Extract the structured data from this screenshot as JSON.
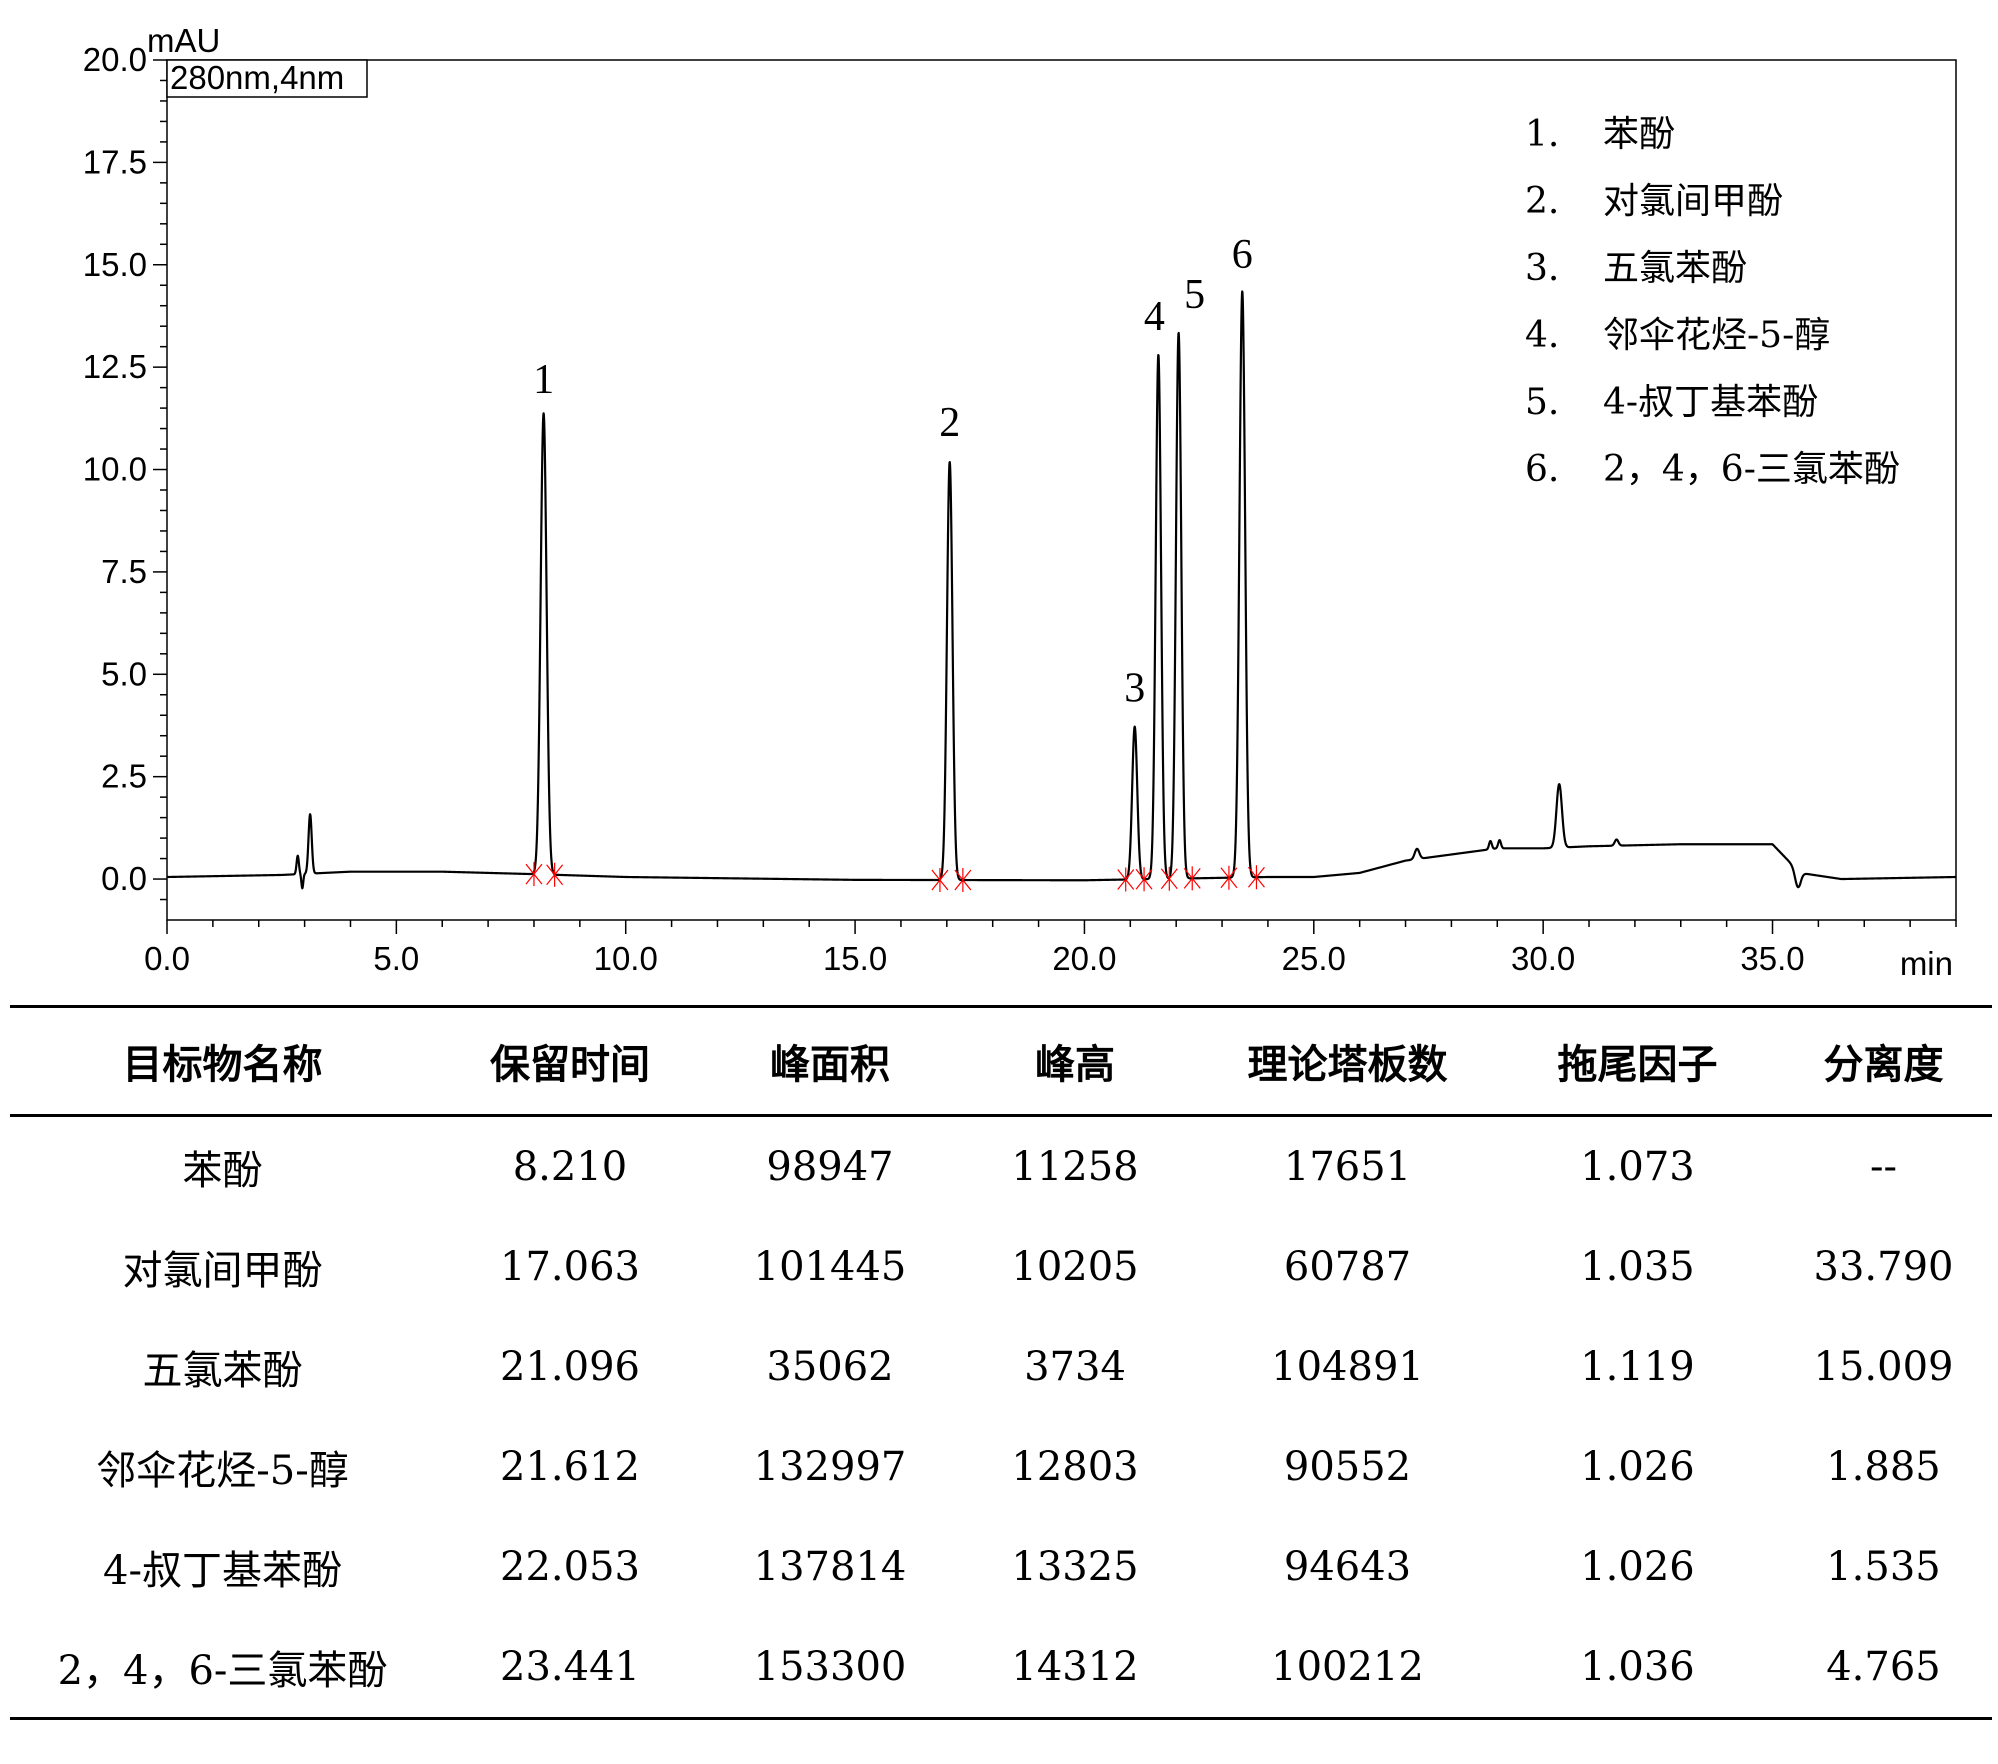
{
  "chart_data": {
    "type": "line",
    "title": "",
    "ylabel": "mAU",
    "xlabel": "min",
    "wavelength_box": "280nm,4nm",
    "xlim": [
      0,
      39
    ],
    "ylim": [
      -1,
      20
    ],
    "x_ticks": [
      "0.0",
      "5.0",
      "10.0",
      "15.0",
      "20.0",
      "25.0",
      "30.0",
      "35.0"
    ],
    "x_tick_values": [
      0,
      5,
      10,
      15,
      20,
      25,
      30,
      35
    ],
    "y_ticks": [
      "0.0",
      "2.5",
      "5.0",
      "7.5",
      "10.0",
      "12.5",
      "15.0",
      "17.5",
      "20.0"
    ],
    "y_tick_values": [
      0,
      2.5,
      5,
      7.5,
      10,
      12.5,
      15,
      17.5,
      20
    ],
    "grid": false,
    "peaks": [
      {
        "label": "1",
        "rt": 8.21,
        "height": 11.26,
        "sigma": 0.065
      },
      {
        "label": "2",
        "rt": 17.063,
        "height": 10.21,
        "sigma": 0.06
      },
      {
        "label": "3",
        "rt": 21.096,
        "height": 3.73,
        "sigma": 0.055
      },
      {
        "label": "4",
        "rt": 21.612,
        "height": 12.8,
        "sigma": 0.058
      },
      {
        "label": "5",
        "rt": 22.053,
        "height": 13.33,
        "sigma": 0.058
      },
      {
        "label": "6",
        "rt": 23.441,
        "height": 14.31,
        "sigma": 0.062
      }
    ],
    "minor_peaks": [
      {
        "rt": 2.85,
        "height": 0.45,
        "sigma": 0.025
      },
      {
        "rt": 3.12,
        "height": 1.45,
        "sigma": 0.035
      },
      {
        "rt": 27.25,
        "height": 0.25,
        "sigma": 0.05
      },
      {
        "rt": 28.85,
        "height": 0.2,
        "sigma": 0.03
      },
      {
        "rt": 29.05,
        "height": 0.2,
        "sigma": 0.03
      },
      {
        "rt": 30.35,
        "height": 1.55,
        "sigma": 0.06
      },
      {
        "rt": 31.6,
        "height": 0.15,
        "sigma": 0.04
      }
    ],
    "baseline": [
      [
        0,
        0.05
      ],
      [
        2.5,
        0.1
      ],
      [
        4,
        0.18
      ],
      [
        6,
        0.18
      ],
      [
        8,
        0.12
      ],
      [
        10,
        0.05
      ],
      [
        15,
        -0.02
      ],
      [
        20,
        -0.03
      ],
      [
        24,
        0.05
      ],
      [
        25,
        0.05
      ],
      [
        26,
        0.15
      ],
      [
        27,
        0.45
      ],
      [
        28,
        0.6
      ],
      [
        29,
        0.75
      ],
      [
        30,
        0.75
      ],
      [
        31,
        0.8
      ],
      [
        33,
        0.85
      ],
      [
        35,
        0.85
      ],
      [
        35.6,
        0.15
      ],
      [
        36.5,
        0
      ],
      [
        39,
        0.05
      ]
    ],
    "integration_marks": [
      8.0,
      8.45,
      16.85,
      17.35,
      20.9,
      21.3,
      21.85,
      22.35,
      23.15,
      23.75
    ],
    "legend": {
      "position": "top-right",
      "entries": [
        {
          "num": "1.",
          "name": "苯酚"
        },
        {
          "num": "2.",
          "name": "对氯间甲酚"
        },
        {
          "num": "3.",
          "name": "五氯苯酚"
        },
        {
          "num": "4.",
          "name": "邻伞花烃-5-醇"
        },
        {
          "num": "5.",
          "name": "4-叔丁基苯酚"
        },
        {
          "num": "6.",
          "name": "2，4，6-三氯苯酚"
        }
      ]
    },
    "colors": {
      "trace": "#000000",
      "marks": "#ff0000"
    }
  },
  "table": {
    "headers": [
      "目标物名称",
      "保留时间",
      "峰面积",
      "峰高",
      "理论塔板数",
      "拖尾因子",
      "分离度"
    ],
    "rows": [
      [
        "苯酚",
        "8.210",
        "98947",
        "11258",
        "17651",
        "1.073",
        "--"
      ],
      [
        "对氯间甲酚",
        "17.063",
        "101445",
        "10205",
        "60787",
        "1.035",
        "33.790"
      ],
      [
        "五氯苯酚",
        "21.096",
        "35062",
        "3734",
        "104891",
        "1.119",
        "15.009"
      ],
      [
        "邻伞花烃-5-醇",
        "21.612",
        "132997",
        "12803",
        "90552",
        "1.026",
        "1.885"
      ],
      [
        "4-叔丁基苯酚",
        "22.053",
        "137814",
        "13325",
        "94643",
        "1.026",
        "1.535"
      ],
      [
        "2，4，6-三氯苯酚",
        "23.441",
        "153300",
        "14312",
        "100212",
        "1.036",
        "4.765"
      ]
    ]
  }
}
